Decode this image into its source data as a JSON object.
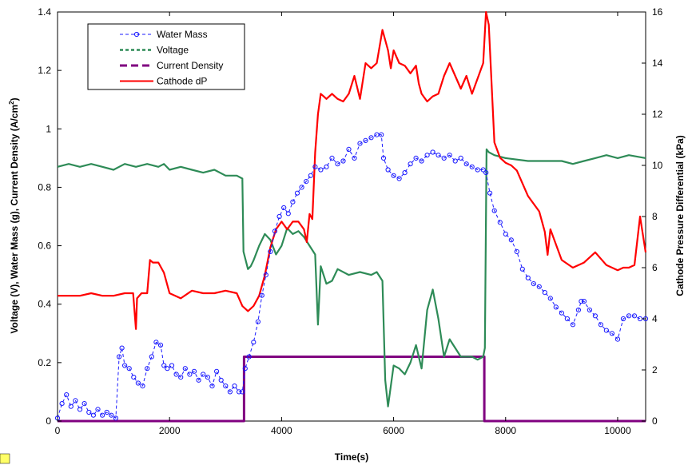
{
  "chart_data": {
    "type": "line",
    "xlabel": "Time(s)",
    "ylabel_left": "Voltage (V), Water Mass (g), Current Density (A/cm",
    "ylabel_left_sup": "2",
    "ylabel_left_end": ")",
    "ylabel_right": "Cathode Pressure Differential (kPa)",
    "xlim": [
      0,
      10500
    ],
    "ylim_left": [
      0,
      1.4
    ],
    "ylim_right": [
      0,
      16
    ],
    "xticks": [
      "0",
      "2000",
      "4000",
      "6000",
      "8000",
      "10000"
    ],
    "yticks_left": [
      "0",
      "0.2",
      "0.4",
      "0.6",
      "0.8",
      "1",
      "1.2",
      "1.4"
    ],
    "yticks_right": [
      "0",
      "2",
      "4",
      "6",
      "8",
      "10",
      "12",
      "14",
      "16"
    ],
    "grid": false,
    "legend_position": "top-left",
    "series": [
      {
        "name": "Water Mass",
        "axis": "left",
        "style": "dashed-markers",
        "color": "#1a1aff",
        "x": [
          0,
          80,
          160,
          240,
          320,
          400,
          480,
          560,
          640,
          720,
          800,
          880,
          960,
          1040,
          1100,
          1150,
          1200,
          1280,
          1360,
          1440,
          1520,
          1600,
          1680,
          1760,
          1840,
          1900,
          1960,
          2040,
          2120,
          2200,
          2280,
          2360,
          2440,
          2520,
          2600,
          2680,
          2760,
          2840,
          2920,
          3000,
          3080,
          3160,
          3240,
          3300,
          3350,
          3420,
          3500,
          3580,
          3650,
          3720,
          3800,
          3880,
          3960,
          4040,
          4120,
          4200,
          4280,
          4360,
          4440,
          4520,
          4600,
          4700,
          4800,
          4900,
          5000,
          5100,
          5200,
          5300,
          5400,
          5500,
          5600,
          5700,
          5780,
          5820,
          5900,
          6000,
          6100,
          6200,
          6300,
          6400,
          6500,
          6600,
          6700,
          6800,
          6900,
          7000,
          7100,
          7200,
          7300,
          7400,
          7500,
          7600,
          7650,
          7720,
          7800,
          7900,
          8000,
          8100,
          8200,
          8300,
          8400,
          8500,
          8600,
          8700,
          8800,
          8900,
          9000,
          9100,
          9200,
          9300,
          9350,
          9400,
          9500,
          9600,
          9700,
          9800,
          9900,
          10000,
          10100,
          10200,
          10300,
          10400,
          10500
        ],
        "y": [
          0.01,
          0.06,
          0.09,
          0.05,
          0.07,
          0.04,
          0.06,
          0.03,
          0.02,
          0.04,
          0.02,
          0.03,
          0.02,
          0.01,
          0.22,
          0.25,
          0.19,
          0.18,
          0.15,
          0.13,
          0.12,
          0.18,
          0.22,
          0.27,
          0.26,
          0.19,
          0.18,
          0.19,
          0.16,
          0.15,
          0.18,
          0.16,
          0.17,
          0.14,
          0.16,
          0.15,
          0.12,
          0.17,
          0.14,
          0.12,
          0.1,
          0.12,
          0.1,
          0.1,
          0.18,
          0.22,
          0.27,
          0.34,
          0.43,
          0.5,
          0.58,
          0.65,
          0.7,
          0.73,
          0.71,
          0.75,
          0.78,
          0.8,
          0.82,
          0.84,
          0.87,
          0.86,
          0.87,
          0.9,
          0.88,
          0.89,
          0.93,
          0.9,
          0.95,
          0.96,
          0.97,
          0.98,
          0.98,
          0.9,
          0.86,
          0.84,
          0.83,
          0.85,
          0.88,
          0.9,
          0.89,
          0.91,
          0.92,
          0.91,
          0.9,
          0.91,
          0.89,
          0.9,
          0.88,
          0.87,
          0.86,
          0.86,
          0.85,
          0.78,
          0.72,
          0.68,
          0.64,
          0.62,
          0.58,
          0.52,
          0.49,
          0.47,
          0.46,
          0.44,
          0.42,
          0.39,
          0.37,
          0.35,
          0.33,
          0.38,
          0.41,
          0.41,
          0.38,
          0.36,
          0.33,
          0.31,
          0.3,
          0.28,
          0.35,
          0.36,
          0.36,
          0.35,
          0.35
        ]
      },
      {
        "name": "Voltage",
        "axis": "left",
        "style": "dotted",
        "color": "#2e8b57",
        "x": [
          0,
          200,
          400,
          600,
          800,
          1000,
          1100,
          1200,
          1400,
          1600,
          1800,
          1900,
          2000,
          2200,
          2400,
          2600,
          2800,
          3000,
          3200,
          3300,
          3320,
          3400,
          3450,
          3500,
          3600,
          3700,
          3800,
          3900,
          4000,
          4100,
          4200,
          4300,
          4400,
          4500,
          4600,
          4650,
          4700,
          4800,
          4900,
          5000,
          5200,
          5400,
          5600,
          5700,
          5800,
          5850,
          5900,
          6000,
          6100,
          6200,
          6300,
          6400,
          6500,
          6600,
          6700,
          6800,
          6900,
          7000,
          7200,
          7400,
          7500,
          7600,
          7630,
          7660,
          7700,
          7800,
          8000,
          8400,
          8800,
          9000,
          9200,
          9400,
          9600,
          9800,
          10000,
          10200,
          10500
        ],
        "y": [
          0.87,
          0.88,
          0.87,
          0.88,
          0.87,
          0.86,
          0.87,
          0.88,
          0.87,
          0.88,
          0.87,
          0.88,
          0.86,
          0.87,
          0.86,
          0.85,
          0.86,
          0.84,
          0.84,
          0.83,
          0.58,
          0.52,
          0.53,
          0.55,
          0.6,
          0.64,
          0.62,
          0.57,
          0.6,
          0.66,
          0.64,
          0.65,
          0.63,
          0.6,
          0.57,
          0.33,
          0.53,
          0.47,
          0.48,
          0.52,
          0.5,
          0.51,
          0.5,
          0.51,
          0.48,
          0.14,
          0.05,
          0.19,
          0.18,
          0.16,
          0.2,
          0.26,
          0.18,
          0.38,
          0.45,
          0.35,
          0.22,
          0.28,
          0.22,
          0.22,
          0.21,
          0.22,
          0.25,
          0.93,
          0.92,
          0.91,
          0.9,
          0.89,
          0.89,
          0.89,
          0.88,
          0.89,
          0.9,
          0.91,
          0.9,
          0.91,
          0.9
        ]
      },
      {
        "name": "Current Density",
        "axis": "left",
        "style": "dashed",
        "color": "#800080",
        "x": [
          0,
          3330,
          3330,
          7620,
          7620,
          10500
        ],
        "y": [
          0,
          0,
          0.22,
          0.22,
          0,
          0
        ]
      },
      {
        "name": "Cathode dP",
        "axis": "right",
        "style": "solid",
        "color": "#ff0000",
        "x": [
          0,
          200,
          400,
          600,
          800,
          1000,
          1200,
          1350,
          1400,
          1420,
          1500,
          1600,
          1650,
          1700,
          1800,
          1900,
          2000,
          2200,
          2400,
          2600,
          2800,
          3000,
          3200,
          3300,
          3400,
          3500,
          3600,
          3700,
          3800,
          3900,
          4000,
          4100,
          4200,
          4300,
          4400,
          4450,
          4500,
          4550,
          4600,
          4650,
          4700,
          4750,
          4800,
          4900,
          5000,
          5100,
          5200,
          5300,
          5400,
          5500,
          5600,
          5700,
          5800,
          5900,
          5950,
          6000,
          6100,
          6200,
          6300,
          6400,
          6450,
          6500,
          6600,
          6700,
          6800,
          6900,
          7000,
          7100,
          7200,
          7300,
          7400,
          7500,
          7600,
          7650,
          7700,
          7800,
          7900,
          8000,
          8100,
          8200,
          8400,
          8600,
          8700,
          8750,
          8800,
          9000,
          9200,
          9400,
          9600,
          9800,
          10000,
          10100,
          10200,
          10300,
          10400,
          10500
        ],
        "y": [
          4.9,
          4.9,
          4.9,
          5.0,
          4.9,
          4.9,
          5.0,
          5.0,
          3.6,
          4.8,
          5.0,
          5.0,
          6.3,
          6.2,
          6.2,
          5.8,
          5.0,
          4.8,
          5.1,
          5.0,
          5.0,
          5.1,
          5.0,
          4.5,
          4.3,
          4.5,
          4.9,
          5.7,
          6.8,
          7.5,
          7.8,
          7.5,
          7.8,
          7.8,
          7.5,
          7.0,
          8.1,
          7.9,
          10.5,
          12.0,
          12.8,
          12.7,
          12.6,
          12.8,
          12.6,
          12.5,
          12.8,
          13.5,
          12.6,
          14.0,
          13.8,
          14.0,
          15.3,
          14.5,
          13.8,
          14.5,
          14.0,
          13.9,
          13.6,
          13.9,
          13.2,
          12.8,
          12.5,
          12.7,
          12.8,
          13.5,
          14.0,
          13.5,
          13.0,
          13.5,
          12.8,
          13.4,
          14.0,
          16.0,
          15.5,
          10.9,
          10.3,
          10.1,
          10.0,
          9.8,
          8.8,
          8.2,
          7.4,
          6.5,
          7.5,
          6.3,
          6.0,
          6.2,
          6.6,
          6.1,
          5.9,
          6.0,
          6.0,
          6.1,
          8.0,
          6.6
        ]
      }
    ]
  }
}
